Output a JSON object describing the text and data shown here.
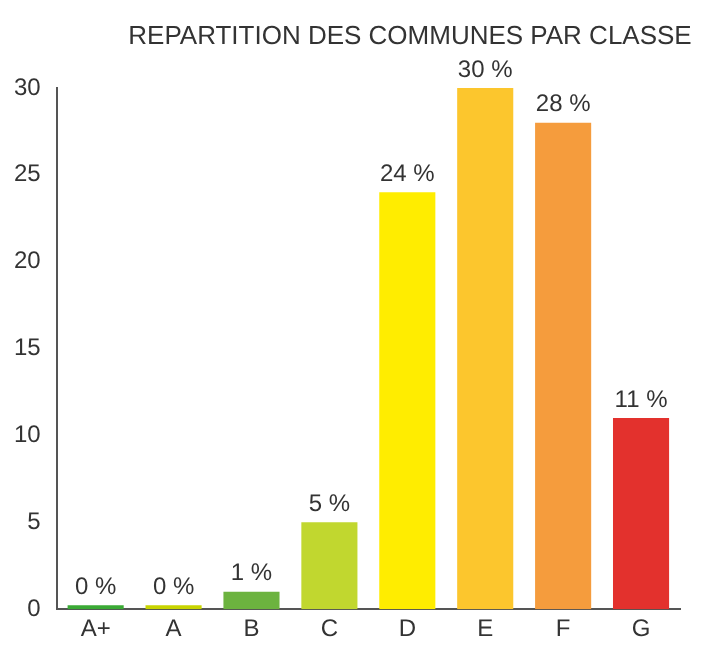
{
  "chart_data": {
    "type": "bar",
    "title": "REPARTITION DES COMMUNES PAR CLASSE",
    "categories": [
      "A+",
      "A",
      "B",
      "C",
      "D",
      "E",
      "F",
      "G"
    ],
    "values": [
      0,
      0,
      1,
      5,
      24,
      30,
      28,
      11
    ],
    "colors": [
      "#3aaa35",
      "#c8d400",
      "#6cb33f",
      "#c1d72f",
      "#ffed00",
      "#fcc62d",
      "#f59c3d",
      "#e3312d"
    ],
    "value_labels": [
      "0 %",
      "0 %",
      "1 %",
      "5 %",
      "24 %",
      "30 %",
      "28 %",
      "11 %"
    ],
    "ylim": [
      0,
      30
    ],
    "yticks": [
      0,
      5,
      10,
      15,
      20,
      25,
      30
    ],
    "grid": false,
    "legend": false
  }
}
